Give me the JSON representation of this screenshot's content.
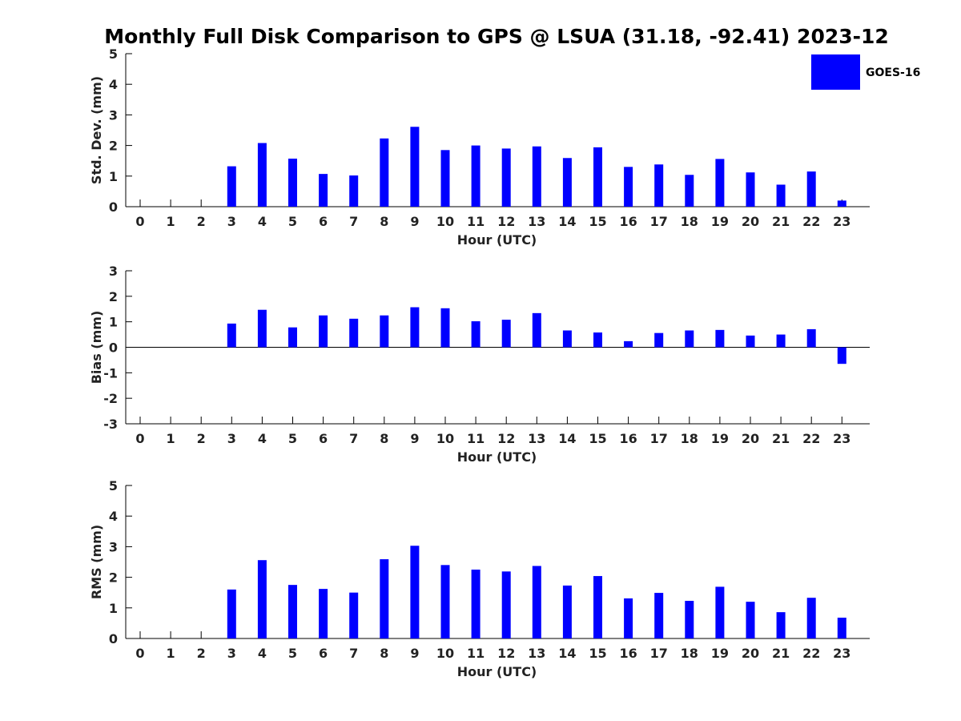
{
  "title": "Monthly Full Disk Comparison to GPS @ LSUA (31.18, -92.41) 2023-12",
  "bar_color": "#0000ff",
  "legend": {
    "label": "GOES-16",
    "placement": "top-right"
  },
  "chart_data": [
    {
      "type": "bar",
      "xlabel": "Hour (UTC)",
      "ylabel": "Std. Dev. (mm)",
      "categories": [
        "0",
        "1",
        "2",
        "3",
        "4",
        "5",
        "6",
        "7",
        "8",
        "9",
        "10",
        "11",
        "12",
        "13",
        "14",
        "15",
        "16",
        "17",
        "18",
        "19",
        "20",
        "21",
        "22",
        "23"
      ],
      "series": [
        {
          "name": "GOES-16",
          "values": [
            null,
            null,
            null,
            1.32,
            2.08,
            1.57,
            1.07,
            1.02,
            2.23,
            2.61,
            1.85,
            2.0,
            1.9,
            1.97,
            1.59,
            1.94,
            1.3,
            1.38,
            1.04,
            1.56,
            1.12,
            0.72,
            1.15,
            0.2
          ]
        }
      ],
      "ylim": [
        0,
        5
      ],
      "yticks": [
        0,
        1,
        2,
        3,
        4,
        5
      ]
    },
    {
      "type": "bar",
      "xlabel": "Hour (UTC)",
      "ylabel": "Bias (mm)",
      "categories": [
        "0",
        "1",
        "2",
        "3",
        "4",
        "5",
        "6",
        "7",
        "8",
        "9",
        "10",
        "11",
        "12",
        "13",
        "14",
        "15",
        "16",
        "17",
        "18",
        "19",
        "20",
        "21",
        "22",
        "23"
      ],
      "series": [
        {
          "name": "GOES-16",
          "values": [
            null,
            null,
            null,
            0.93,
            1.47,
            0.78,
            1.25,
            1.12,
            1.25,
            1.57,
            1.53,
            1.02,
            1.08,
            1.34,
            0.66,
            0.58,
            0.24,
            0.56,
            0.66,
            0.68,
            0.46,
            0.5,
            0.71,
            -0.65
          ]
        }
      ],
      "ylim": [
        -3,
        3
      ],
      "yticks": [
        -3,
        -2,
        -1,
        0,
        1,
        2,
        3
      ],
      "zero_line": true
    },
    {
      "type": "bar",
      "xlabel": "Hour (UTC)",
      "ylabel": "RMS (mm)",
      "categories": [
        "0",
        "1",
        "2",
        "3",
        "4",
        "5",
        "6",
        "7",
        "8",
        "9",
        "10",
        "11",
        "12",
        "13",
        "14",
        "15",
        "16",
        "17",
        "18",
        "19",
        "20",
        "21",
        "22",
        "23"
      ],
      "series": [
        {
          "name": "GOES-16",
          "values": [
            null,
            null,
            null,
            1.6,
            2.56,
            1.75,
            1.62,
            1.5,
            2.59,
            3.03,
            2.4,
            2.25,
            2.19,
            2.37,
            1.73,
            2.04,
            1.31,
            1.49,
            1.23,
            1.69,
            1.2,
            0.86,
            1.33,
            0.68
          ]
        }
      ],
      "ylim": [
        0,
        5
      ],
      "yticks": [
        0,
        1,
        2,
        3,
        4,
        5
      ]
    }
  ]
}
